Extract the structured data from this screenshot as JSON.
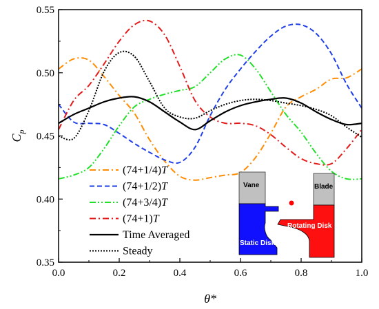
{
  "chart_data": {
    "type": "line",
    "xlabel": "θ*",
    "ylabel_main": "C",
    "ylabel_sub": "p",
    "xlim": [
      0.0,
      1.0
    ],
    "ylim": [
      0.35,
      0.55
    ],
    "x_ticks": [
      "0.0",
      "0.2",
      "0.4",
      "0.6",
      "0.8",
      "1.0"
    ],
    "y_ticks": [
      "0.35",
      "0.40",
      "0.45",
      "0.50",
      "0.55"
    ],
    "grid": false,
    "legend_position": "lower-left",
    "x": [
      0.0,
      0.05,
      0.1,
      0.15,
      0.2,
      0.25,
      0.3,
      0.35,
      0.4,
      0.45,
      0.5,
      0.55,
      0.6,
      0.65,
      0.7,
      0.75,
      0.8,
      0.85,
      0.9,
      0.95,
      1.0
    ],
    "series": [
      {
        "name": "(74+1/4)T",
        "name_prefix": "(74+1/4)",
        "name_suffix": "T",
        "color": "#FF8C00",
        "dash": "dashdot",
        "values": [
          0.503,
          0.511,
          0.51,
          0.497,
          0.482,
          0.468,
          0.447,
          0.43,
          0.418,
          0.415,
          0.417,
          0.419,
          0.421,
          0.433,
          0.452,
          0.473,
          0.481,
          0.487,
          0.495,
          0.496,
          0.503
        ]
      },
      {
        "name": "(74+1/2)T",
        "name_prefix": "(74+1/2)",
        "name_suffix": "T",
        "color": "#1F3FE8",
        "dash": "dash",
        "values": [
          0.475,
          0.461,
          0.46,
          0.459,
          0.452,
          0.444,
          0.437,
          0.431,
          0.429,
          0.441,
          0.466,
          0.487,
          0.503,
          0.517,
          0.529,
          0.537,
          0.538,
          0.531,
          0.515,
          0.491,
          0.472
        ]
      },
      {
        "name": "(74+3/4)T",
        "name_prefix": "(74+3/4)",
        "name_suffix": "T",
        "color": "#22E02A",
        "dash": "dashdotdot",
        "values": [
          0.416,
          0.419,
          0.425,
          0.44,
          0.458,
          0.473,
          0.479,
          0.483,
          0.486,
          0.489,
          0.5,
          0.511,
          0.514,
          0.503,
          0.485,
          0.467,
          0.453,
          0.436,
          0.422,
          0.416,
          0.416
        ]
      },
      {
        "name": "(74+1)T",
        "name_prefix": "(74+1)",
        "name_suffix": "T",
        "color": "#E51A1A",
        "dash": "dashdot",
        "values": [
          0.455,
          0.478,
          0.49,
          0.507,
          0.525,
          0.538,
          0.541,
          0.53,
          0.505,
          0.478,
          0.465,
          0.46,
          0.46,
          0.458,
          0.451,
          0.441,
          0.432,
          0.428,
          0.428,
          0.44,
          0.455
        ]
      },
      {
        "name": "Time Averaged",
        "color": "#000000",
        "dash": "solid",
        "values": [
          0.46,
          0.467,
          0.472,
          0.477,
          0.48,
          0.481,
          0.477,
          0.469,
          0.461,
          0.455,
          0.462,
          0.469,
          0.474,
          0.477,
          0.479,
          0.48,
          0.476,
          0.469,
          0.463,
          0.459,
          0.46
        ]
      },
      {
        "name": "Steady",
        "color": "#000000",
        "dash": "dot",
        "values": [
          0.45,
          0.448,
          0.47,
          0.501,
          0.516,
          0.513,
          0.493,
          0.472,
          0.465,
          0.464,
          0.47,
          0.475,
          0.478,
          0.479,
          0.478,
          0.476,
          0.474,
          0.471,
          0.466,
          0.457,
          0.449
        ]
      }
    ]
  },
  "inset": {
    "vane_label": "Vane",
    "blade_label": "Blade",
    "static_label": "Static Disk",
    "rotating_label": "Rotating Disk",
    "static_color": "#1010FF",
    "rotating_color": "#FF1010",
    "vane_color": "#C0C0C0",
    "dot_color": "#FF0000"
  }
}
